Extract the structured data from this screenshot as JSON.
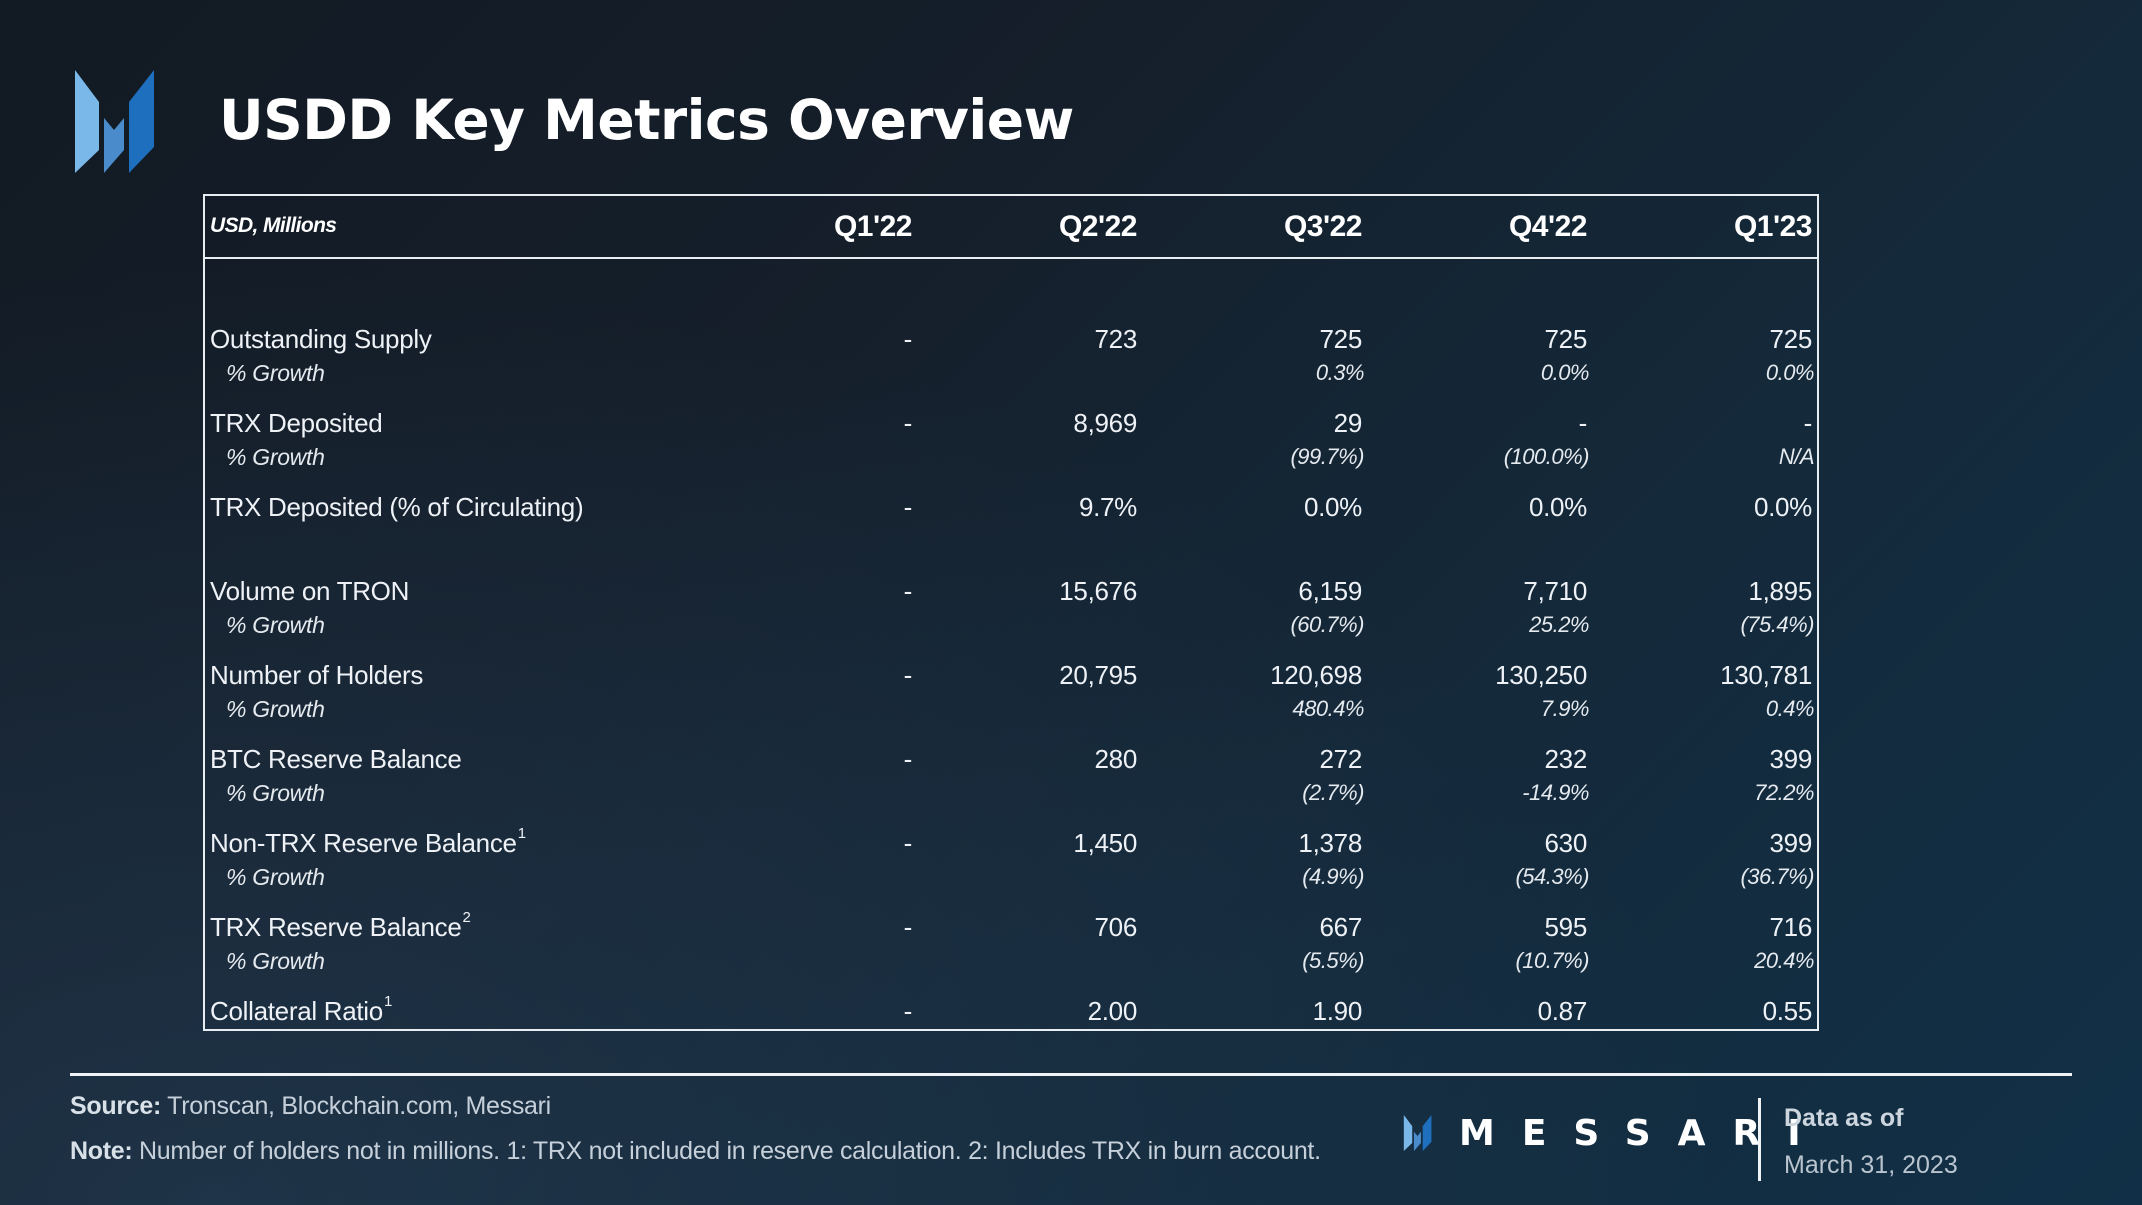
{
  "title": "USDD Key Metrics Overview",
  "brand_colors": {
    "logo_light": "#7ab8ea",
    "logo_mid": "#4a8bcb",
    "logo_dark": "#1e6fbd",
    "background_dark": "#121a23",
    "background_blue": "#113047",
    "text": "#ffffff"
  },
  "table": {
    "unit_label": "USD, Millions",
    "columns": [
      "Q1'22",
      "Q2'22",
      "Q3'22",
      "Q4'22",
      "Q1'23"
    ],
    "growth_label": "% Growth",
    "rows": [
      {
        "label": "Outstanding Supply",
        "footnote": "",
        "values": [
          "-",
          "723",
          "725",
          "725",
          "725"
        ],
        "growth": [
          "",
          "",
          "0.3%",
          "0.0%",
          "0.0%"
        ]
      },
      {
        "label": "TRX Deposited",
        "footnote": "",
        "values": [
          "-",
          "8,969",
          "29",
          "-",
          "-"
        ],
        "growth": [
          "",
          "",
          "(99.7%)",
          "(100.0%)",
          "N/A"
        ]
      },
      {
        "label": "TRX Deposited (% of Circulating)",
        "footnote": "",
        "values": [
          "-",
          "9.7%",
          "0.0%",
          "0.0%",
          "0.0%"
        ],
        "growth": null
      },
      {
        "label": "Volume on TRON",
        "footnote": "",
        "values": [
          "-",
          "15,676",
          "6,159",
          "7,710",
          "1,895"
        ],
        "growth": [
          "",
          "",
          "(60.7%)",
          "25.2%",
          "(75.4%)"
        ]
      },
      {
        "label": "Number of Holders",
        "footnote": "",
        "values": [
          "-",
          "20,795",
          "120,698",
          "130,250",
          "130,781"
        ],
        "growth": [
          "",
          "",
          "480.4%",
          "7.9%",
          "0.4%"
        ]
      },
      {
        "label": "BTC Reserve Balance",
        "footnote": "",
        "values": [
          "-",
          "280",
          "272",
          "232",
          "399"
        ],
        "growth": [
          "",
          "",
          "(2.7%)",
          "-14.9%",
          "72.2%"
        ]
      },
      {
        "label": "Non-TRX Reserve Balance",
        "footnote": "1",
        "values": [
          "-",
          "1,450",
          "1,378",
          "630",
          "399"
        ],
        "growth": [
          "",
          "",
          "(4.9%)",
          "(54.3%)",
          "(36.7%)"
        ]
      },
      {
        "label": "TRX Reserve Balance",
        "footnote": "2",
        "values": [
          "-",
          "706",
          "667",
          "595",
          "716"
        ],
        "growth": [
          "",
          "",
          "(5.5%)",
          "(10.7%)",
          "20.4%"
        ]
      },
      {
        "label": "Collateral Ratio",
        "footnote": "1",
        "values": [
          "-",
          "2.00",
          "1.90",
          "0.87",
          "0.55"
        ],
        "growth": null
      }
    ]
  },
  "footer": {
    "source_label": "Source:",
    "source_text": " Tronscan, Blockchain.com, Messari",
    "note_label": "Note:",
    "note_text": " Number of holders not in millions. 1: TRX not included in reserve calculation. 2: Includes TRX in burn account.",
    "brand_name": "MESSARI",
    "data_as_of_label": "Data as of",
    "data_as_of_date": "March 31, 2023"
  }
}
